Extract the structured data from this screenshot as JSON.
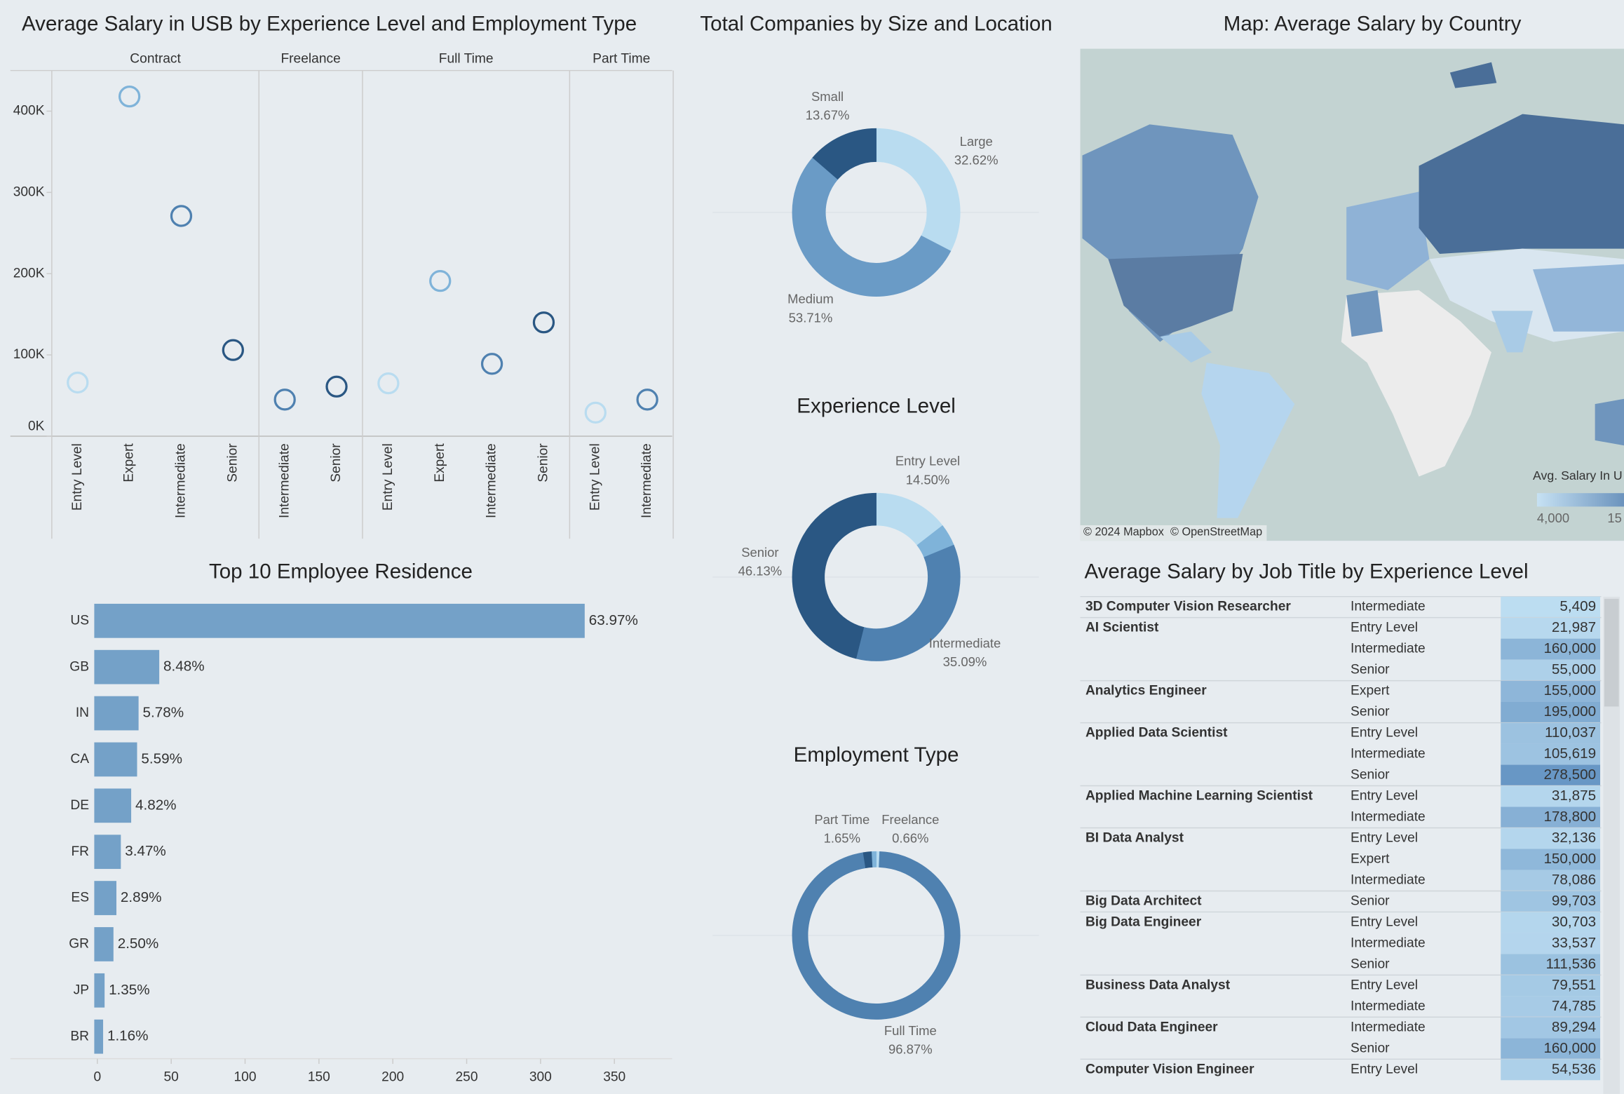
{
  "chart_data": [
    {
      "type": "dot",
      "title": "Average Salary in USB by Experience Level and Employment Type",
      "facets": [
        {
          "name": "Contract",
          "categories": [
            "Entry Level",
            "Expert",
            "Intermediate",
            "Senior"
          ],
          "values": [
            66000,
            418000,
            271000,
            106000
          ],
          "colors": [
            "#b9dcf0",
            "#7fb3d9",
            "#4f81b0",
            "#2a5783"
          ]
        },
        {
          "name": "Freelance",
          "categories": [
            "Intermediate",
            "Senior"
          ],
          "values": [
            45000,
            61000
          ],
          "colors": [
            "#4f81b0",
            "#2a5783"
          ]
        },
        {
          "name": "Full Time",
          "categories": [
            "Entry Level",
            "Expert",
            "Intermediate",
            "Senior"
          ],
          "values": [
            65000,
            191000,
            89000,
            140000
          ],
          "colors": [
            "#b9dcf0",
            "#7fb3d9",
            "#4f81b0",
            "#2a5783"
          ]
        },
        {
          "name": "Part Time",
          "categories": [
            "Entry Level",
            "Intermediate"
          ],
          "values": [
            29000,
            45000
          ],
          "colors": [
            "#b9dcf0",
            "#4f81b0"
          ]
        }
      ],
      "ylim": [
        0,
        450000
      ],
      "yticks": [
        {
          "value": 0,
          "label": "0K"
        },
        {
          "value": 100000,
          "label": "100K"
        },
        {
          "value": 200000,
          "label": "200K"
        },
        {
          "value": 300000,
          "label": "300K"
        },
        {
          "value": 400000,
          "label": "400K"
        }
      ]
    },
    {
      "type": "donut",
      "title": "Total Companies by Size and Location",
      "categories": [
        "Large",
        "Medium",
        "Small"
      ],
      "values": [
        32.62,
        53.71,
        13.67
      ],
      "value_labels": [
        "32.62%",
        "53.71%",
        "13.67%"
      ],
      "colors": [
        "#b9dcf0",
        "#6a9bc6",
        "#2a5783"
      ]
    },
    {
      "type": "donut",
      "title": "Experience Level",
      "categories": [
        "Entry Level",
        null,
        "Intermediate",
        "Senior"
      ],
      "values": [
        14.5,
        4.28,
        35.09,
        46.13
      ],
      "value_labels": [
        "14.50%",
        null,
        "35.09%",
        "46.13%"
      ],
      "colors": [
        "#b9dcf0",
        "#7fb3d9",
        "#4f81b0",
        "#2a5783"
      ]
    },
    {
      "type": "donut",
      "title": "Employment Type",
      "categories": [
        "Freelance",
        "Full Time",
        "Part Time",
        null
      ],
      "values": [
        0.66,
        96.87,
        1.65,
        0.82
      ],
      "value_labels": [
        "0.66%",
        "96.87%",
        "1.65%",
        null
      ],
      "colors": [
        "#b9dcf0",
        "#4f81b0",
        "#2a5783",
        "#7fb3d9"
      ]
    },
    {
      "type": "hbar",
      "title": "Top 10 Employee Residence",
      "categories": [
        "US",
        "GB",
        "IN",
        "CA",
        "DE",
        "FR",
        "ES",
        "GR",
        "JP",
        "BR"
      ],
      "values": [
        332,
        44,
        30,
        29,
        25,
        18,
        15,
        13,
        7,
        6
      ],
      "value_labels": [
        "63.97%",
        "8.48%",
        "5.78%",
        "5.59%",
        "4.82%",
        "3.47%",
        "2.89%",
        "2.50%",
        "1.35%",
        "1.16%"
      ],
      "color": "#74a1c8",
      "xlim": [
        0,
        380
      ],
      "xticks": [
        0,
        50,
        100,
        150,
        200,
        250,
        300,
        350
      ]
    }
  ],
  "map": {
    "title": "Map: Average Salary by Country",
    "legend_title": "Avg. Salary In U",
    "legend_ticks": [
      "4,000",
      "15"
    ],
    "credits": [
      "© 2024 Mapbox",
      "© OpenStreetMap"
    ]
  },
  "table": {
    "title": "Average Salary by Job Title by Experience Level",
    "groups": [
      {
        "title": "3D Computer Vision Researcher",
        "rows": [
          [
            "Intermediate",
            "5,409"
          ]
        ]
      },
      {
        "title": "AI Scientist",
        "rows": [
          [
            "Entry Level",
            "21,987"
          ],
          [
            "Intermediate",
            "160,000"
          ],
          [
            "Senior",
            "55,000"
          ]
        ]
      },
      {
        "title": "Analytics Engineer",
        "rows": [
          [
            "Expert",
            "155,000"
          ],
          [
            "Senior",
            "195,000"
          ]
        ]
      },
      {
        "title": "Applied Data Scientist",
        "rows": [
          [
            "Entry Level",
            "110,037"
          ],
          [
            "Intermediate",
            "105,619"
          ],
          [
            "Senior",
            "278,500"
          ]
        ]
      },
      {
        "title": "Applied Machine Learning Scientist",
        "rows": [
          [
            "Entry Level",
            "31,875"
          ],
          [
            "Intermediate",
            "178,800"
          ]
        ]
      },
      {
        "title": "BI Data Analyst",
        "rows": [
          [
            "Entry Level",
            "32,136"
          ],
          [
            "Expert",
            "150,000"
          ],
          [
            "Intermediate",
            "78,086"
          ]
        ]
      },
      {
        "title": "Big Data Architect",
        "rows": [
          [
            "Senior",
            "99,703"
          ]
        ]
      },
      {
        "title": "Big Data Engineer",
        "rows": [
          [
            "Entry Level",
            "30,703"
          ],
          [
            "Intermediate",
            "33,537"
          ],
          [
            "Senior",
            "111,536"
          ]
        ]
      },
      {
        "title": "Business Data Analyst",
        "rows": [
          [
            "Entry Level",
            "79,551"
          ],
          [
            "Intermediate",
            "74,785"
          ]
        ]
      },
      {
        "title": "Cloud Data Engineer",
        "rows": [
          [
            "Intermediate",
            "89,294"
          ],
          [
            "Senior",
            "160,000"
          ]
        ]
      },
      {
        "title": "Computer Vision Engineer",
        "rows": [
          [
            "Entry Level",
            "54,536"
          ]
        ]
      }
    ]
  }
}
